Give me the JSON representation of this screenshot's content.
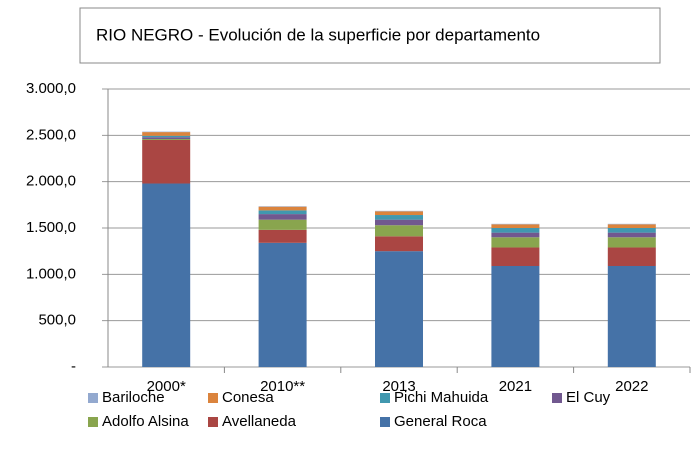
{
  "chart_data": {
    "type": "bar",
    "stacked": true,
    "title": "RIO NEGRO - Evolución de la superficie por departamento",
    "categories": [
      "2000*",
      "2010**",
      "2013",
      "2021",
      "2022"
    ],
    "series": [
      {
        "name": "Bariloche",
        "color": "#93a9cf",
        "values": [
          5,
          5,
          5,
          5,
          5
        ]
      },
      {
        "name": "Conesa",
        "color": "#db843d",
        "values": [
          40,
          40,
          40,
          40,
          40
        ]
      },
      {
        "name": "Pichi Mahuida",
        "color": "#4198af",
        "values": [
          15,
          40,
          50,
          50,
          50
        ]
      },
      {
        "name": "El Cuy",
        "color": "#71588f",
        "values": [
          20,
          60,
          60,
          50,
          50
        ]
      },
      {
        "name": "Adolfo Alsina",
        "color": "#89a54e",
        "values": [
          10,
          110,
          120,
          110,
          110
        ]
      },
      {
        "name": "Avellaneda",
        "color": "#aa4643",
        "values": [
          470,
          140,
          160,
          200,
          200
        ]
      },
      {
        "name": "General Roca",
        "color": "#4572a7",
        "values": [
          1980,
          1340,
          1250,
          1090,
          1090
        ]
      }
    ],
    "ylim": [
      0,
      3000
    ],
    "yticks": [
      {
        "value": 0,
        "label": "-"
      },
      {
        "value": 500,
        "label": "500,0"
      },
      {
        "value": 1000,
        "label": "1.000,0"
      },
      {
        "value": 1500,
        "label": "1.500,0"
      },
      {
        "value": 2000,
        "label": "2.000,0"
      },
      {
        "value": 2500,
        "label": "2.500,0"
      },
      {
        "value": 3000,
        "label": "3.000,0"
      }
    ],
    "grid": true
  }
}
